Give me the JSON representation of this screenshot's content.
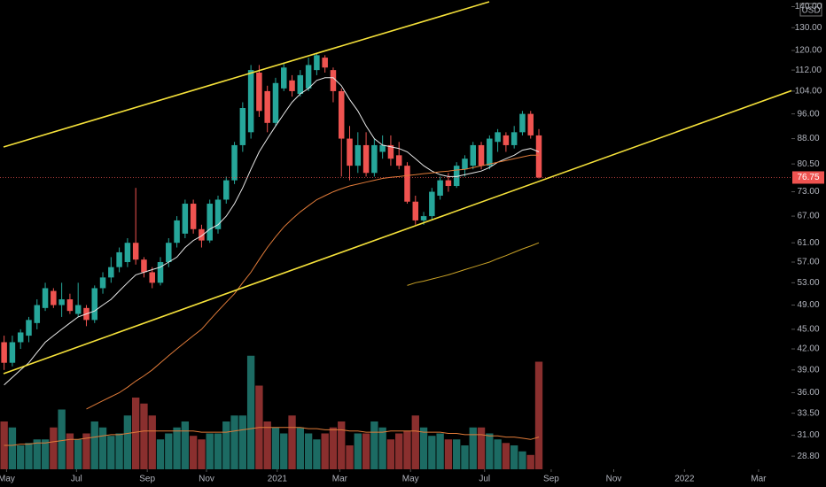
{
  "chart_data": {
    "type": "candlestick",
    "currency": "USD",
    "log_scale": true,
    "up_color": "#26a69a",
    "down_color": "#ef5350",
    "volume_up_color": "#1c6b63",
    "volume_down_color": "#8a2f2e",
    "open": [
      43,
      40,
      43,
      44,
      46,
      48.5,
      51.5,
      49,
      50,
      47.5,
      48.5,
      46.5,
      52,
      54,
      56,
      57,
      61,
      57.5,
      55,
      53,
      57,
      61,
      63,
      70,
      64,
      61.5,
      64,
      71,
      76,
      86,
      90,
      111,
      104,
      93,
      105,
      108,
      103,
      105,
      112,
      117,
      112,
      104,
      88,
      80,
      86,
      78,
      84,
      86,
      83,
      80,
      70.5,
      66,
      67,
      72,
      76,
      74.5,
      79,
      80,
      86,
      80,
      87,
      89,
      86,
      90,
      96,
      89
    ],
    "high": [
      44,
      44,
      45,
      47,
      50,
      53,
      52,
      53,
      51,
      53,
      49,
      52.5,
      55,
      58,
      60,
      62,
      74,
      58,
      56,
      58,
      62,
      67,
      71,
      71,
      65,
      71,
      72,
      77,
      87,
      100,
      114,
      114,
      106,
      109,
      115,
      110,
      112,
      117,
      119,
      118,
      113,
      105,
      92,
      90,
      90,
      88,
      89,
      89,
      87,
      81,
      72,
      68,
      74,
      77,
      78,
      81,
      83,
      87,
      87,
      89,
      91,
      90,
      92,
      97,
      97,
      91
    ],
    "low": [
      39,
      39.5,
      42,
      43,
      45,
      48,
      48.5,
      47,
      47.5,
      47,
      45.5,
      46,
      51,
      53,
      55,
      56,
      56.5,
      54,
      52,
      52.5,
      56,
      60,
      62,
      63,
      60,
      61,
      63,
      70,
      75,
      84,
      88,
      95,
      90,
      92,
      104,
      102,
      102,
      104,
      110,
      111,
      100,
      77,
      76,
      78,
      77,
      77,
      82,
      80,
      79,
      70,
      65,
      65,
      66,
      71,
      73,
      74,
      77,
      79,
      79,
      79,
      84,
      84,
      85,
      89,
      88,
      76.5
    ],
    "close": [
      40,
      43,
      44.5,
      46.5,
      49,
      52,
      49,
      50,
      48,
      49,
      46.5,
      52,
      54,
      56,
      59,
      61,
      57.5,
      55,
      53,
      57,
      61,
      66,
      70,
      64,
      61.5,
      70,
      71,
      76,
      86,
      98,
      112,
      97,
      93,
      107,
      113,
      104,
      110,
      114,
      118,
      113,
      104,
      88,
      80,
      86,
      78,
      86,
      86,
      82,
      80,
      70.5,
      66,
      67,
      73,
      76,
      74.5,
      80,
      82,
      86,
      80,
      88,
      90,
      86,
      90,
      96,
      89,
      76.75
    ],
    "volume": [
      40,
      35,
      20,
      22,
      25,
      25,
      35,
      50,
      30,
      25,
      30,
      40,
      35,
      28,
      30,
      45,
      60,
      55,
      45,
      25,
      30,
      35,
      40,
      28,
      25,
      30,
      30,
      40,
      45,
      45,
      95,
      70,
      40,
      35,
      30,
      45,
      35,
      30,
      25,
      30,
      35,
      40,
      20,
      30,
      30,
      40,
      35,
      25,
      30,
      32,
      45,
      35,
      28,
      30,
      25,
      25,
      20,
      35,
      35,
      30,
      25,
      22,
      20,
      15,
      12,
      90
    ],
    "volume_lim": [
      0,
      100
    ],
    "moving_averages": [
      {
        "color": "#e8e8e8",
        "values": [
          37,
          38,
          39,
          40,
          41.5,
          43,
          44,
          45,
          46,
          47,
          47.5,
          48,
          49,
          50,
          51.5,
          53,
          54.5,
          55,
          55.5,
          56,
          57,
          58,
          60,
          61.5,
          62.5,
          64,
          65,
          67,
          70,
          74,
          79,
          84,
          88,
          92,
          96,
          100,
          103,
          105,
          108,
          109,
          109,
          106,
          101,
          97,
          92,
          88,
          86,
          85.5,
          85,
          84,
          82,
          80,
          78.5,
          77.5,
          77,
          77,
          77.5,
          78,
          78.5,
          79.5,
          81,
          82,
          83,
          84.5,
          85,
          84
        ]
      },
      {
        "color": "#e07b39",
        "values": [
          null,
          null,
          null,
          null,
          null,
          null,
          null,
          null,
          null,
          null,
          34,
          34.5,
          35,
          35.5,
          36,
          36.7,
          37.5,
          38.2,
          39,
          40,
          41,
          42,
          43,
          44,
          45,
          46.5,
          48,
          49.5,
          51,
          53,
          55,
          57.5,
          60,
          62.3,
          64.5,
          66.3,
          68,
          69.5,
          71,
          72,
          73,
          73.8,
          74.5,
          75,
          75.5,
          76,
          76.5,
          76.8,
          77,
          77.3,
          77.5,
          77.8,
          78,
          78.3,
          78.5,
          78.8,
          79,
          79.5,
          80,
          80.5,
          81,
          81.5,
          82,
          82.5,
          83,
          83
        ]
      },
      {
        "color": "#c9a227",
        "values": [
          null,
          null,
          null,
          null,
          null,
          null,
          null,
          null,
          null,
          null,
          null,
          null,
          null,
          null,
          null,
          null,
          null,
          null,
          null,
          null,
          null,
          null,
          null,
          null,
          null,
          null,
          null,
          null,
          null,
          null,
          null,
          null,
          null,
          null,
          null,
          null,
          null,
          null,
          null,
          null,
          null,
          null,
          null,
          null,
          null,
          null,
          null,
          null,
          null,
          52.5,
          53,
          53.3,
          53.7,
          54.1,
          54.5,
          55,
          55.5,
          56,
          56.5,
          57,
          57.7,
          58.3,
          59,
          59.7,
          60.3,
          61
        ]
      }
    ],
    "volume_ma": {
      "color": "#e07b39",
      "values": [
        20,
        20,
        21,
        21,
        22,
        22,
        23,
        24,
        25,
        25,
        26,
        27,
        28,
        29,
        29,
        30,
        31,
        32,
        32,
        32,
        32,
        32,
        32,
        32,
        31,
        31,
        31,
        31,
        32,
        33,
        34,
        35,
        35,
        35,
        35,
        35,
        35,
        34,
        34,
        33,
        33,
        33,
        32,
        32,
        31,
        31,
        31,
        32,
        32,
        32,
        32,
        31,
        31,
        31,
        30,
        30,
        29,
        29,
        29,
        28,
        28,
        27,
        27,
        26,
        25,
        27
      ]
    },
    "last_price": {
      "value": 76.75,
      "label": "76.75"
    },
    "ylim": [
      27.5,
      143.3
    ],
    "yticks": [
      {
        "value": 28.8,
        "label": "28.80"
      },
      {
        "value": 31,
        "label": "31.00"
      },
      {
        "value": 33.5,
        "label": "33.50"
      },
      {
        "value": 36,
        "label": "36.00"
      },
      {
        "value": 39,
        "label": "39.00"
      },
      {
        "value": 42,
        "label": "42.00"
      },
      {
        "value": 45,
        "label": "45.00"
      },
      {
        "value": 49,
        "label": "49.00"
      },
      {
        "value": 53,
        "label": "53.00"
      },
      {
        "value": 57,
        "label": "57.00"
      },
      {
        "value": 61,
        "label": "61.00"
      },
      {
        "value": 67,
        "label": "67.00"
      },
      {
        "value": 73,
        "label": "73.00"
      },
      {
        "value": 80.5,
        "label": "80.50"
      },
      {
        "value": 88,
        "label": "88.00"
      },
      {
        "value": 96,
        "label": "96.00"
      },
      {
        "value": 104,
        "label": "104.00"
      },
      {
        "value": 112,
        "label": "112.00"
      },
      {
        "value": 120,
        "label": "120.00"
      },
      {
        "value": 130,
        "label": "130.00"
      },
      {
        "value": 140,
        "label": "140.00"
      }
    ],
    "xlim": [
      -0.5,
      95.7
    ],
    "xticks": [
      {
        "value": 0.3,
        "label": "May"
      },
      {
        "value": 8.8,
        "label": "Jul"
      },
      {
        "value": 17.4,
        "label": "Sep"
      },
      {
        "value": 24.6,
        "label": "Nov"
      },
      {
        "value": 33.2,
        "label": "2021"
      },
      {
        "value": 40.8,
        "label": "Mar"
      },
      {
        "value": 49.4,
        "label": "May"
      },
      {
        "value": 58.4,
        "label": "Jul"
      },
      {
        "value": 66.5,
        "label": "Sep"
      },
      {
        "value": 74.1,
        "label": "Nov"
      },
      {
        "value": 82.7,
        "label": "2022"
      },
      {
        "value": 91.7,
        "label": "Mar"
      }
    ]
  }
}
